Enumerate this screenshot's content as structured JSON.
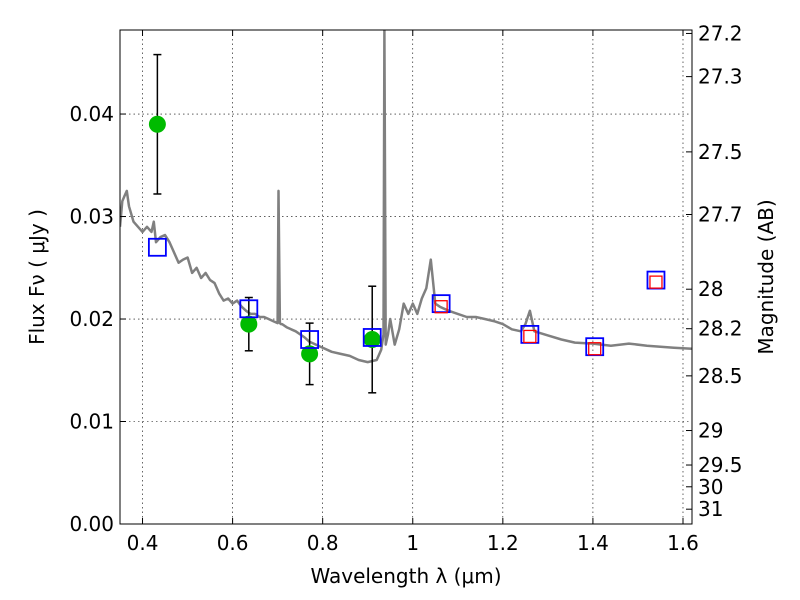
{
  "chart_data": {
    "type": "scatter",
    "xlabel": "Wavelength  λ (μm)",
    "ylabel": "Flux  Fν  ( μJy )",
    "y2label": "Magnitude (AB)",
    "xlim": [
      0.35,
      1.62
    ],
    "ylim": [
      0.0,
      0.0482
    ],
    "grid": true,
    "x_ticks": [
      0.4,
      0.6,
      0.8,
      1.0,
      1.2,
      1.4,
      1.6
    ],
    "x_tick_labels": [
      "0.4",
      "0.6",
      "0.8",
      "1",
      "1.2",
      "1.4",
      "1.6"
    ],
    "y_ticks": [
      0.0,
      0.01,
      0.02,
      0.03,
      0.04
    ],
    "y_tick_labels": [
      "0.00",
      "0.01",
      "0.02",
      "0.03",
      "0.04"
    ],
    "y2_ticks": [
      "27.2",
      "27.3",
      "27.5",
      "27.7",
      "28",
      "28.2",
      "28.5",
      "29",
      "29.5",
      "30",
      "31"
    ],
    "colors": {
      "model": "#808080",
      "observed": "#00bb00",
      "model_photometry": "#0000ff",
      "secondary_photometry": "#ff0000"
    },
    "series": [
      {
        "kind": "line",
        "x": [
          0.35,
          0.355,
          0.36,
          0.365,
          0.37,
          0.38,
          0.39,
          0.4,
          0.41,
          0.42,
          0.425,
          0.43,
          0.44,
          0.45,
          0.46,
          0.47,
          0.48,
          0.49,
          0.5,
          0.51,
          0.52,
          0.53,
          0.54,
          0.55,
          0.56,
          0.57,
          0.58,
          0.59,
          0.6,
          0.61,
          0.62,
          0.63,
          0.64,
          0.65,
          0.66,
          0.67,
          0.68,
          0.69,
          0.7,
          0.702,
          0.705,
          0.707,
          0.71,
          0.72,
          0.73,
          0.74,
          0.75,
          0.76,
          0.77,
          0.78,
          0.8,
          0.82,
          0.84,
          0.86,
          0.88,
          0.9,
          0.92,
          0.93,
          0.935,
          0.937,
          0.94,
          0.945,
          0.95,
          0.96,
          0.97,
          0.98,
          0.99,
          1.0,
          1.01,
          1.02,
          1.03,
          1.04,
          1.05,
          1.06,
          1.08,
          1.1,
          1.12,
          1.14,
          1.16,
          1.18,
          1.2,
          1.22,
          1.24,
          1.25,
          1.26,
          1.27,
          1.3,
          1.33,
          1.36,
          1.4,
          1.44,
          1.48,
          1.52,
          1.55,
          1.58,
          1.62
        ],
        "y": [
          0.029,
          0.0315,
          0.032,
          0.0325,
          0.031,
          0.0295,
          0.029,
          0.0285,
          0.029,
          0.0285,
          0.0295,
          0.0275,
          0.028,
          0.0282,
          0.0275,
          0.0265,
          0.0255,
          0.0258,
          0.026,
          0.0245,
          0.025,
          0.024,
          0.0245,
          0.0238,
          0.0235,
          0.0225,
          0.0218,
          0.022,
          0.0215,
          0.0218,
          0.0212,
          0.0208,
          0.0205,
          0.0205,
          0.0202,
          0.0202,
          0.02,
          0.0198,
          0.0196,
          0.0325,
          0.0196,
          0.0195,
          0.0195,
          0.0192,
          0.019,
          0.0188,
          0.0185,
          0.0182,
          0.0178,
          0.0176,
          0.0172,
          0.0168,
          0.0166,
          0.0164,
          0.016,
          0.0158,
          0.016,
          0.017,
          0.0185,
          0.0482,
          0.0175,
          0.0185,
          0.02,
          0.0175,
          0.019,
          0.0215,
          0.0205,
          0.0215,
          0.0205,
          0.022,
          0.023,
          0.0258,
          0.0215,
          0.0212,
          0.0208,
          0.0205,
          0.0202,
          0.0202,
          0.02,
          0.0198,
          0.0195,
          0.019,
          0.0188,
          0.0195,
          0.0208,
          0.0188,
          0.0184,
          0.018,
          0.0177,
          0.0176,
          0.0174,
          0.0176,
          0.0174,
          0.0173,
          0.0172,
          0.0171
        ]
      },
      {
        "kind": "points",
        "marker": "filled-circle",
        "x": [
          0.433,
          0.636,
          0.771,
          0.91
        ],
        "y": [
          0.039,
          0.0195,
          0.0166,
          0.018
        ],
        "err": [
          0.0068,
          0.0026,
          0.003,
          0.0052
        ]
      },
      {
        "kind": "points",
        "marker": "open-square",
        "x": [
          0.433,
          0.636,
          0.771,
          0.91,
          1.063,
          1.26,
          1.404,
          1.54
        ],
        "y": [
          0.027,
          0.021,
          0.018,
          0.0182,
          0.0215,
          0.0185,
          0.0173,
          0.0238
        ]
      },
      {
        "kind": "points",
        "marker": "open-square-small",
        "x": [
          1.063,
          1.26,
          1.404,
          1.54
        ],
        "y": [
          0.0212,
          0.0183,
          0.0171,
          0.0236
        ]
      }
    ]
  }
}
